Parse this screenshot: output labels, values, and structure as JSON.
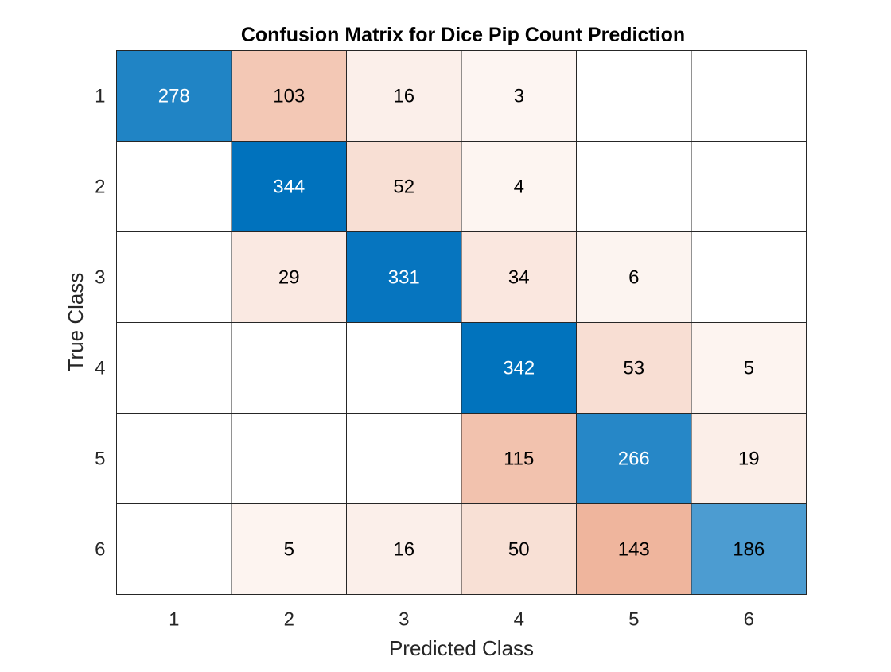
{
  "chart_data": {
    "type": "heatmap",
    "title": "Confusion Matrix for Dice Pip Count Prediction",
    "xlabel": "Predicted Class",
    "ylabel": "True Class",
    "row_labels": [
      "1",
      "2",
      "3",
      "4",
      "5",
      "6"
    ],
    "col_labels": [
      "1",
      "2",
      "3",
      "4",
      "5",
      "6"
    ],
    "matrix": [
      [
        278,
        103,
        16,
        3,
        null,
        null
      ],
      [
        null,
        344,
        52,
        4,
        null,
        null
      ],
      [
        null,
        29,
        331,
        34,
        6,
        null
      ],
      [
        null,
        null,
        null,
        342,
        53,
        5
      ],
      [
        null,
        null,
        null,
        115,
        266,
        19
      ],
      [
        null,
        5,
        16,
        50,
        143,
        186
      ]
    ],
    "grid": true,
    "legend": "none",
    "colors": {
      "diagonal": "#0072BD",
      "off_diagonal": "#D95319",
      "light_text": "#ffffff",
      "dark_text": "#000000"
    }
  }
}
